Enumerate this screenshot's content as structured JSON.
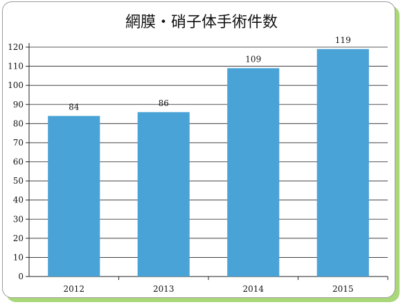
{
  "chart_data": {
    "type": "bar",
    "title": "網膜・硝子体手術件数",
    "categories": [
      "2012",
      "2013",
      "2014",
      "2015"
    ],
    "values": [
      84,
      86,
      109,
      119
    ],
    "data_labels": [
      "84",
      "86",
      "109",
      "119"
    ],
    "ylim": [
      0,
      120
    ],
    "yticks": [
      "0",
      "10",
      "20",
      "30",
      "40",
      "50",
      "60",
      "70",
      "80",
      "90",
      "100",
      "110",
      "120"
    ],
    "grid": true,
    "legend": "none",
    "bar_color": "#4aa3d6",
    "xlabel": "",
    "ylabel": ""
  }
}
